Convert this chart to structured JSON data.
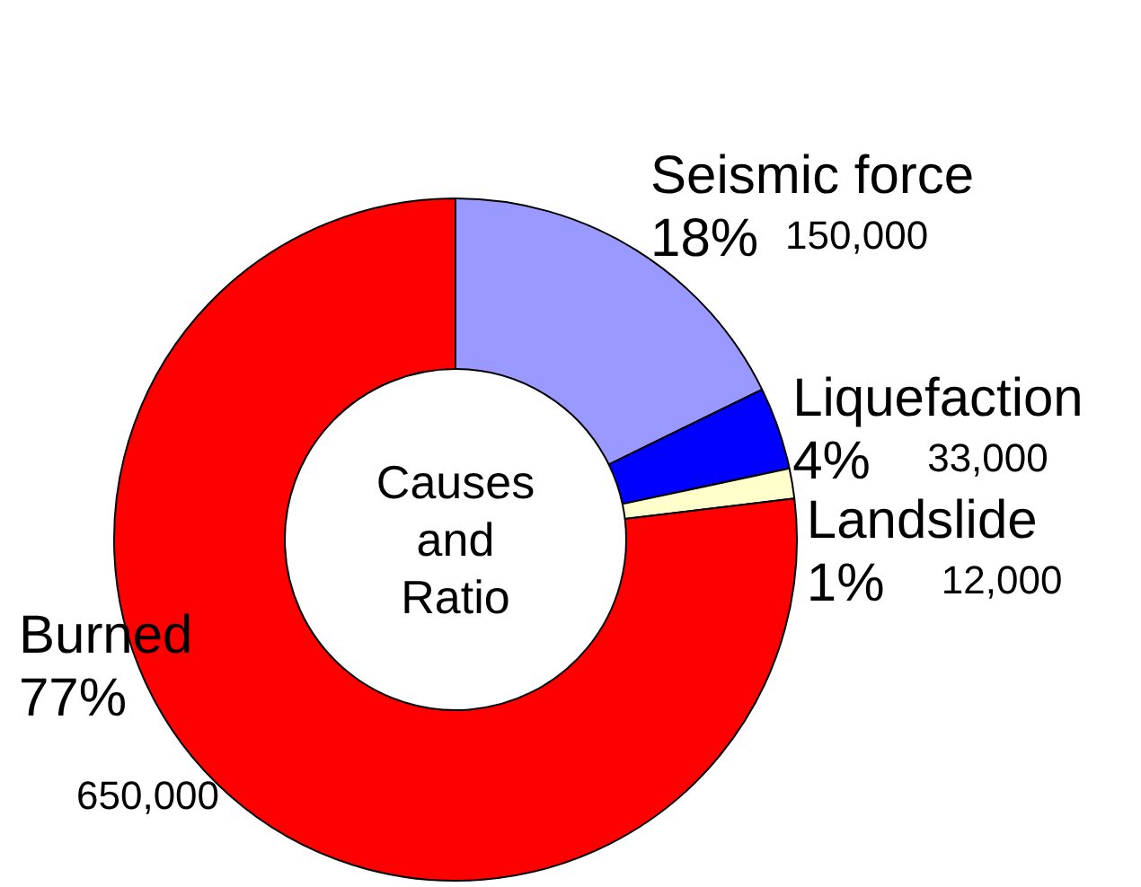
{
  "chart_data": {
    "type": "donut",
    "title": "Causes and Ratio",
    "categories": [
      "Seismic force",
      "Liquefaction",
      "Landslide",
      "Burned"
    ],
    "values": [
      150000,
      33000,
      12000,
      650000
    ],
    "colors": [
      "#9999ff",
      "#0000ff",
      "#ffffcc",
      "#ff0000"
    ],
    "value_labels": [
      "150,000",
      "33,000",
      "12,000",
      "650,000"
    ],
    "annotations": [
      "18%",
      "4%",
      "1%",
      "77%"
    ]
  }
}
